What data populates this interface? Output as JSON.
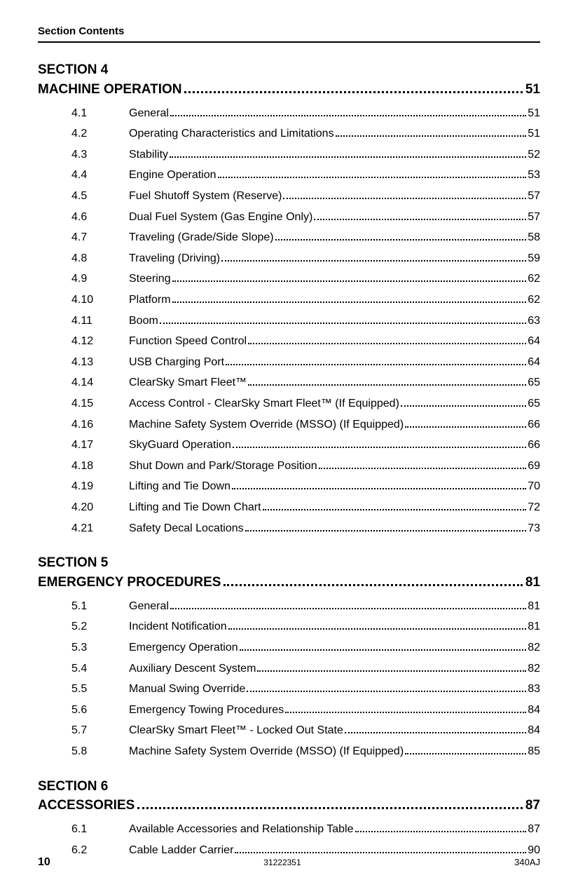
{
  "header": "Section Contents",
  "sections": [
    {
      "id": "SECTION 4",
      "title": "MACHINE OPERATION",
      "page": "51",
      "entries": [
        {
          "num": "4.1",
          "label": "General",
          "page": "51"
        },
        {
          "num": "4.2",
          "label": "Operating Characteristics and Limitations",
          "page": "51"
        },
        {
          "num": "4.3",
          "label": "Stability",
          "page": "52"
        },
        {
          "num": "4.4",
          "label": "Engine Operation",
          "page": "53"
        },
        {
          "num": "4.5",
          "label": "Fuel Shutoff System (Reserve)",
          "page": "57"
        },
        {
          "num": "4.6",
          "label": "Dual Fuel System (Gas Engine Only)",
          "page": "57"
        },
        {
          "num": "4.7",
          "label": "Traveling (Grade/Side Slope)",
          "page": "58"
        },
        {
          "num": "4.8",
          "label": "Traveling (Driving)",
          "page": "59"
        },
        {
          "num": "4.9",
          "label": "Steering",
          "page": "62"
        },
        {
          "num": "4.10",
          "label": "Platform",
          "page": "62"
        },
        {
          "num": "4.11",
          "label": "Boom",
          "page": "63"
        },
        {
          "num": "4.12",
          "label": "Function Speed Control",
          "page": "64"
        },
        {
          "num": "4.13",
          "label": "USB Charging Port",
          "page": "64"
        },
        {
          "num": "4.14",
          "label": "ClearSky Smart Fleet™",
          "page": "65"
        },
        {
          "num": "4.15",
          "label": "Access Control - ClearSky Smart Fleet™ (If Equipped)",
          "page": "65"
        },
        {
          "num": "4.16",
          "label": "Machine Safety System Override (MSSO) (If Equipped)",
          "page": "66"
        },
        {
          "num": "4.17",
          "label": "SkyGuard Operation",
          "page": "66"
        },
        {
          "num": "4.18",
          "label": "Shut Down and Park/Storage Position",
          "page": "69"
        },
        {
          "num": "4.19",
          "label": "Lifting and Tie Down",
          "page": "70"
        },
        {
          "num": "4.20",
          "label": "Lifting and Tie Down Chart",
          "page": "72"
        },
        {
          "num": "4.21",
          "label": "Safety Decal Locations",
          "page": "73"
        }
      ]
    },
    {
      "id": "SECTION 5",
      "title": "EMERGENCY PROCEDURES",
      "page": "81",
      "entries": [
        {
          "num": "5.1",
          "label": "General",
          "page": "81"
        },
        {
          "num": "5.2",
          "label": "Incident Notification",
          "page": "81"
        },
        {
          "num": "5.3",
          "label": "Emergency Operation",
          "page": "82"
        },
        {
          "num": "5.4",
          "label": "Auxiliary Descent System",
          "page": "82"
        },
        {
          "num": "5.5",
          "label": "Manual Swing Override",
          "page": "83"
        },
        {
          "num": "5.6",
          "label": "Emergency Towing Procedures",
          "page": "84"
        },
        {
          "num": "5.7",
          "label": "ClearSky Smart Fleet™ - Locked Out State",
          "page": "84"
        },
        {
          "num": "5.8",
          "label": "Machine Safety System Override (MSSO) (If Equipped)",
          "page": "85"
        }
      ]
    },
    {
      "id": "SECTION 6",
      "title": "ACCESSORIES",
      "page": "87",
      "entries": [
        {
          "num": "6.1",
          "label": "Available Accessories and Relationship Table",
          "page": "87"
        },
        {
          "num": "6.2",
          "label": "Cable Ladder Carrier",
          "page": "90"
        }
      ]
    }
  ],
  "footer": {
    "pagenum": "10",
    "docnum": "31222351",
    "model": "340AJ"
  },
  "style": {
    "page_bg": "#ffffff",
    "text_color": "#000000",
    "rule_color": "#000000",
    "heading_fontsize_pt": 14,
    "section_title_fontsize_pt": 15,
    "entry_fontsize_pt": 12,
    "footer_fontsize_pt": 10,
    "font_family": "Segoe UI / Helvetica Neue / Arial (sans-serif)",
    "entry_leader_style": "dotted",
    "section_leader_style": "dotted-bold"
  }
}
